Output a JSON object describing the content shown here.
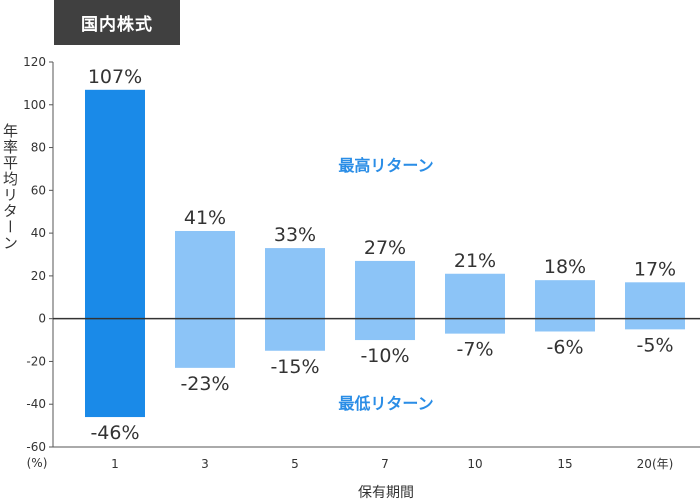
{
  "tag_label": "国内株式",
  "chart_data": {
    "type": "bar",
    "categories": [
      "1",
      "3",
      "5",
      "7",
      "10",
      "15",
      "20(年)"
    ],
    "series": [
      {
        "name": "最高リターン",
        "values": [
          107,
          41,
          33,
          27,
          21,
          18,
          17
        ]
      },
      {
        "name": "最低リターン",
        "values": [
          -46,
          -23,
          -15,
          -10,
          -7,
          -6,
          -5
        ]
      }
    ],
    "value_labels_max": [
      "107%",
      "41%",
      "33%",
      "27%",
      "21%",
      "18%",
      "17%"
    ],
    "value_labels_min": [
      "-46%",
      "-23%",
      "-15%",
      "-10%",
      "-7%",
      "-6%",
      "-5%"
    ],
    "ylabel": "年率平均リターン",
    "xlabel": "保有期間",
    "y_unit_label": "(%)",
    "ylim": [
      -60,
      120
    ],
    "yticks": [
      120,
      100,
      80,
      60,
      40,
      20,
      0,
      -20,
      -40,
      -60
    ],
    "grid": false,
    "colors": {
      "highlight": "#1a8ae8",
      "normal": "#8cc4f7",
      "annotation": "#2a8de6",
      "zero_line": "#333333",
      "axis": "#555555"
    }
  }
}
